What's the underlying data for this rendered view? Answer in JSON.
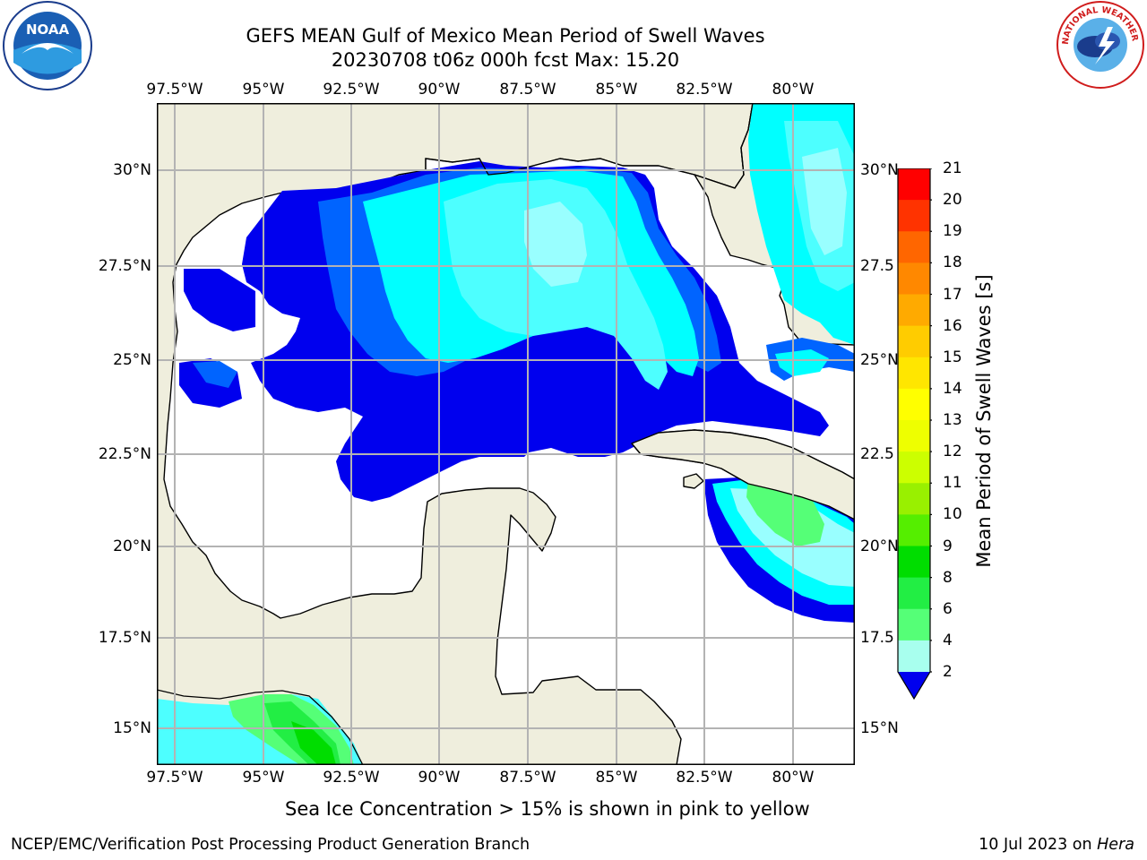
{
  "title": {
    "line1": "GEFS MEAN Gulf of Mexico Mean Period of Swell Waves",
    "line2": "20230708 t06z 000h fcst   Max: 15.20"
  },
  "axes": {
    "lon_labels": [
      "97.5°W",
      "95°W",
      "92.5°W",
      "90°W",
      "87.5°W",
      "85°W",
      "82.5°W",
      "80°W"
    ],
    "lat_labels_left": [
      "30°N",
      "27.5°N",
      "25°N",
      "22.5°N",
      "20°N",
      "17.5°N",
      "15°N"
    ],
    "lat_labels_right": [
      "30°N",
      "27.5",
      "25°N",
      "22.5",
      "20°N",
      "17.5",
      "15°N"
    ]
  },
  "colorbar": {
    "label": "Mean Period of Swell Waves [s]",
    "ticks": [
      "21",
      "20",
      "19",
      "18",
      "17",
      "16",
      "15",
      "14",
      "13",
      "12",
      "11",
      "10",
      "9",
      "8",
      "6",
      "4",
      "2"
    ],
    "colors": [
      "#0000ee",
      "#0064ff",
      "#00c8ff",
      "#00ffff",
      "#4dffff",
      "#99ffff",
      "#a8ffee",
      "#55ff77",
      "#22ee44",
      "#00dd00",
      "#55ee00",
      "#99f000",
      "#ccff00",
      "#eeff00",
      "#ffff00",
      "#ffe600",
      "#ffcc00",
      "#ffaa00",
      "#ff8800",
      "#ff6600",
      "#ff3300",
      "#ff0000"
    ]
  },
  "map_colors": {
    "land": "#efeedd",
    "ocean": "#ffffff",
    "grid": "#b3b3b3"
  },
  "footnote": "Sea Ice Concentration > 15% is shown in pink to yellow",
  "credit": "NCEP/EMC/Verification Post Processing Product Generation Branch",
  "date": {
    "text": "10 Jul 2023 on ",
    "machine": "Hera"
  },
  "logos": {
    "noaa": "NOAA",
    "nws": "NATIONAL WEATHER SERVICE"
  }
}
